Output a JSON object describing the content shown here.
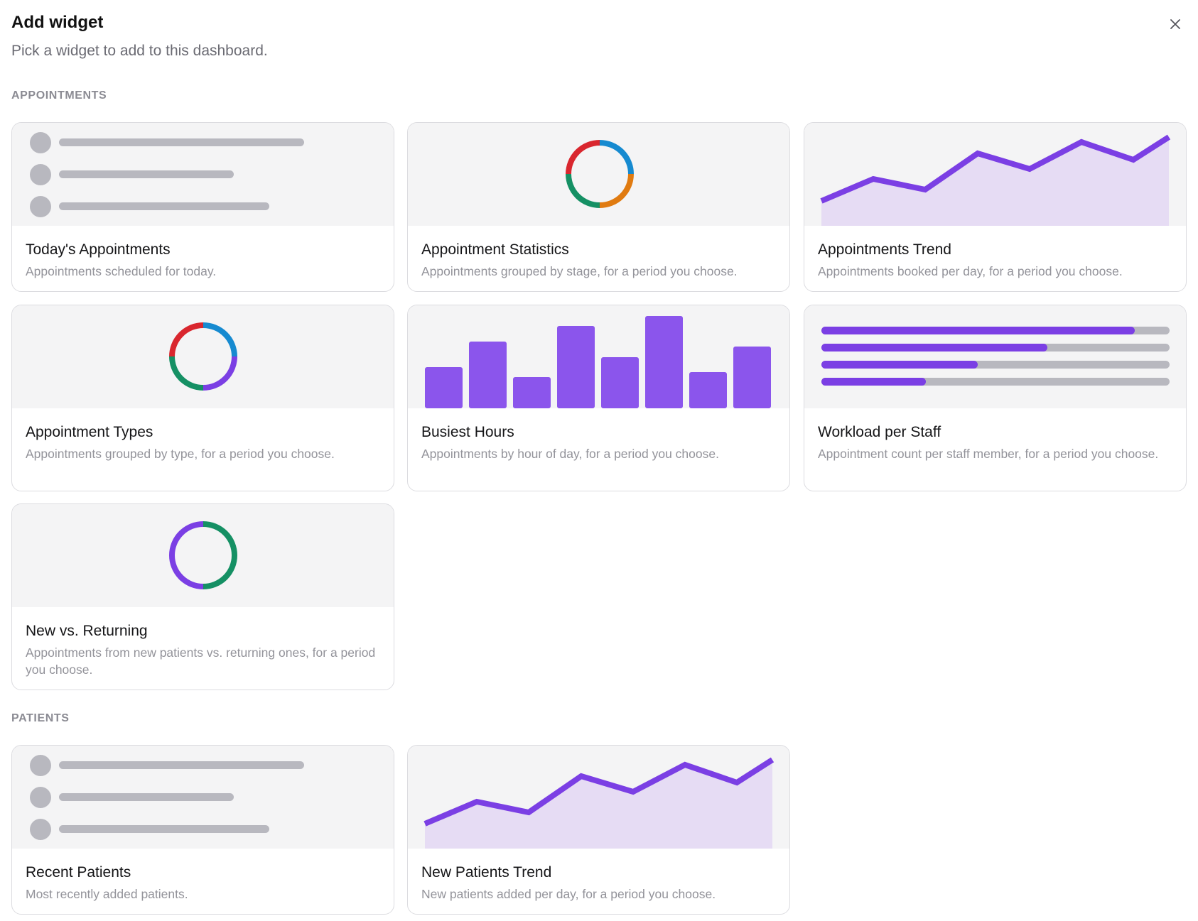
{
  "dialog": {
    "title": "Add widget",
    "subtitle": "Pick a widget to add to this dashboard.",
    "close_icon": "close-icon"
  },
  "colors": {
    "accent": "#7b3fe4",
    "bar": "#8b55ec",
    "area_fill": "#e6dcf4",
    "skeleton": "#b8b8bf",
    "preview_bg": "#f4f4f5",
    "red": "#d9262e",
    "blue": "#168ad0",
    "orange": "#e07b11",
    "green": "#159064"
  },
  "sections": [
    {
      "label": "APPOINTMENTS",
      "widgets": [
        {
          "title": "Today's Appointments",
          "description": "Appointments scheduled for today.",
          "preview": "list"
        },
        {
          "title": "Appointment Statistics",
          "description": "Appointments grouped by stage, for a period you choose.",
          "preview": "donut-4"
        },
        {
          "title": "Appointments Trend",
          "description": "Appointments booked per day, for a period you choose.",
          "preview": "area"
        },
        {
          "title": "Appointment Types",
          "description": "Appointments grouped by type, for a period you choose.",
          "preview": "donut-types"
        },
        {
          "title": "Busiest Hours",
          "description": "Appointments by hour of day, for a period you choose.",
          "preview": "bars"
        },
        {
          "title": "Workload per Staff",
          "description": "Appointment count per staff member, for a period you choose.",
          "preview": "progress"
        },
        {
          "title": "New vs. Returning",
          "description": "Appointments from new patients vs. returning ones, for a period you choose.",
          "preview": "donut-2"
        }
      ]
    },
    {
      "label": "PATIENTS",
      "widgets": [
        {
          "title": "Recent Patients",
          "description": "Most recently added patients.",
          "preview": "list"
        },
        {
          "title": "New Patients Trend",
          "description": "New patients added per day, for a period you choose.",
          "preview": "area"
        }
      ]
    }
  ]
}
